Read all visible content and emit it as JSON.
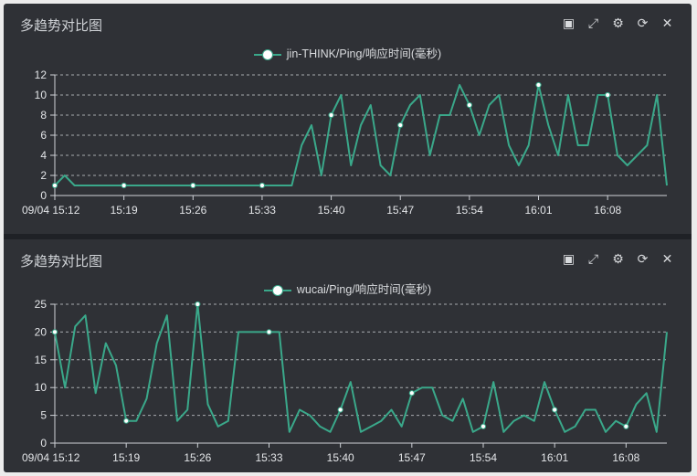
{
  "panels": [
    {
      "title": "多趋势对比图",
      "tools": [
        "restore-icon",
        "fullscreen-icon",
        "gear-icon",
        "refresh-icon",
        "close-icon"
      ],
      "legend": "jin-THINK/Ping/响应时间(毫秒)"
    },
    {
      "title": "多趋势对比图",
      "tools": [
        "restore-icon",
        "fullscreen-icon",
        "gear-icon",
        "refresh-icon",
        "close-icon"
      ],
      "legend": "wucai/Ping/响应时间(毫秒)"
    }
  ],
  "chart_data": [
    {
      "type": "line",
      "title": "",
      "xlabel": "",
      "ylabel": "",
      "ylim": [
        0,
        12
      ],
      "yticks": [
        0,
        2,
        4,
        6,
        8,
        10,
        12
      ],
      "xtick_labels": [
        "09/04 15:12",
        "15:19",
        "15:26",
        "15:33",
        "15:40",
        "15:47",
        "15:54",
        "16:01",
        "16:08"
      ],
      "grid": "dashed-horizontal",
      "legend_position": "top-center",
      "color": "#3aa88a",
      "series": [
        {
          "name": "jin-THINK/Ping/响应时间(毫秒)",
          "values": [
            1,
            2,
            1,
            1,
            1,
            1,
            1,
            1,
            1,
            1,
            1,
            1,
            1,
            1,
            1,
            1,
            1,
            1,
            1,
            1,
            1,
            1,
            1,
            1,
            1,
            5,
            7,
            2,
            8,
            10,
            3,
            7,
            9,
            3,
            2,
            7,
            9,
            10,
            4,
            8,
            8,
            11,
            9,
            6,
            9,
            10,
            5,
            3,
            5,
            11,
            7,
            4,
            10,
            5,
            5,
            10,
            10,
            4,
            3,
            4,
            5,
            10,
            1
          ],
          "marked_points": [
            0,
            7,
            14,
            21,
            28,
            35,
            42,
            49,
            56
          ]
        }
      ]
    },
    {
      "type": "line",
      "title": "",
      "xlabel": "",
      "ylabel": "",
      "ylim": [
        0,
        25
      ],
      "yticks": [
        0,
        5,
        10,
        15,
        20,
        25
      ],
      "xtick_labels": [
        "09/04 15:12",
        "15:19",
        "15:26",
        "15:33",
        "15:40",
        "15:47",
        "15:54",
        "16:01",
        "16:08"
      ],
      "grid": "dashed-horizontal",
      "legend_position": "top-center",
      "color": "#3aa88a",
      "series": [
        {
          "name": "wucai/Ping/响应时间(毫秒)",
          "values": [
            20,
            10,
            21,
            23,
            9,
            18,
            14,
            4,
            4,
            8,
            18,
            23,
            4,
            6,
            25,
            7,
            3,
            4,
            20,
            20,
            20,
            20,
            20,
            2,
            6,
            5,
            3,
            2,
            6,
            11,
            2,
            3,
            4,
            6,
            3,
            9,
            10,
            10,
            5,
            4,
            8,
            2,
            3,
            11,
            2,
            4,
            5,
            4,
            11,
            6,
            2,
            3,
            6,
            6,
            2,
            4,
            3,
            7,
            9,
            2,
            20
          ],
          "marked_points": [
            0,
            7,
            14,
            21,
            28,
            35,
            42,
            49,
            56
          ]
        }
      ]
    }
  ]
}
